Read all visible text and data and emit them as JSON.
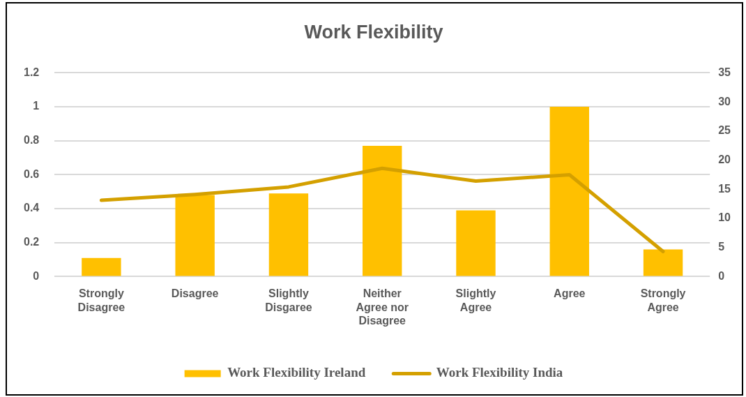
{
  "chart_data": {
    "type": "bar",
    "title": "Work Flexibility",
    "categories": [
      "Strongly Disagree",
      "Disagree",
      "Slightly Disgaree",
      "Neither Agree nor Disagree",
      "Slightly Agree",
      "Agree",
      "Strongly Agree"
    ],
    "series": [
      {
        "name": "Work Flexibility Ireland",
        "color": "#ffc000",
        "values": [
          0.11,
          0.48,
          0.49,
          0.77,
          0.39,
          1.0,
          0.16
        ]
      },
      {
        "name": "Work Flexibility India",
        "type": "line",
        "axis": "y2",
        "color": "#d4a000",
        "values": [
          13.1,
          14.1,
          15.4,
          18.6,
          16.4,
          17.5,
          4.3
        ]
      }
    ],
    "ylim": [
      0,
      1.2
    ],
    "yticks": [
      0,
      0.2,
      0.4,
      0.6,
      0.8,
      1,
      1.2
    ],
    "y2lim": [
      0,
      35
    ],
    "y2ticks": [
      0,
      5,
      10,
      15,
      20,
      25,
      30,
      35
    ],
    "grid": "y",
    "legend": "bottom",
    "marker": "none",
    "line_style": "solid"
  }
}
